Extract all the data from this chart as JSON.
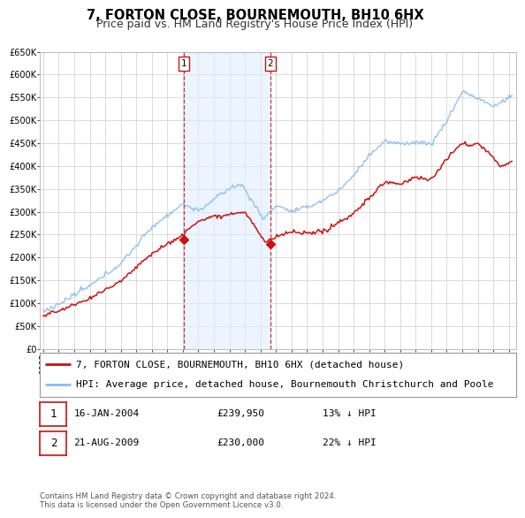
{
  "title": "7, FORTON CLOSE, BOURNEMOUTH, BH10 6HX",
  "subtitle": "Price paid vs. HM Land Registry's House Price Index (HPI)",
  "ylim": [
    0,
    650000
  ],
  "yticks": [
    0,
    50000,
    100000,
    150000,
    200000,
    250000,
    300000,
    350000,
    400000,
    450000,
    500000,
    550000,
    600000,
    650000
  ],
  "xlim_start": 1994.8,
  "xlim_end": 2025.5,
  "xticks": [
    1995,
    1996,
    1997,
    1998,
    1999,
    2000,
    2001,
    2002,
    2003,
    2004,
    2005,
    2006,
    2007,
    2008,
    2009,
    2010,
    2011,
    2012,
    2013,
    2014,
    2015,
    2016,
    2017,
    2018,
    2019,
    2020,
    2021,
    2022,
    2023,
    2024,
    2025
  ],
  "grid_color": "#cccccc",
  "bg_color": "#ffffff",
  "plot_bg_color": "#ffffff",
  "hpi_color": "#88bbee",
  "price_color": "#cc1111",
  "marker_color": "#cc1111",
  "sale1_x": 2004.04,
  "sale1_y": 239950,
  "sale2_x": 2009.64,
  "sale2_y": 230000,
  "vline_color": "#cc1111",
  "shade_color": "#ddeeff",
  "legend_label_price": "7, FORTON CLOSE, BOURNEMOUTH, BH10 6HX (detached house)",
  "legend_label_hpi": "HPI: Average price, detached house, Bournemouth Christchurch and Poole",
  "table_row1": [
    "1",
    "16-JAN-2004",
    "£239,950",
    "13% ↓ HPI"
  ],
  "table_row2": [
    "2",
    "21-AUG-2009",
    "£230,000",
    "22% ↓ HPI"
  ],
  "footer": "Contains HM Land Registry data © Crown copyright and database right 2024.\nThis data is licensed under the Open Government Licence v3.0.",
  "title_fontsize": 10.5,
  "subtitle_fontsize": 9,
  "tick_fontsize": 7,
  "legend_fontsize": 8
}
